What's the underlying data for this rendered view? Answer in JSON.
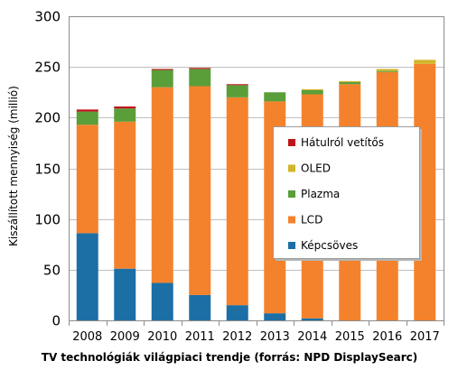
{
  "chart_data": {
    "type": "bar",
    "stacked": true,
    "categories": [
      "2008",
      "2009",
      "2010",
      "2011",
      "2012",
      "2013",
      "2014",
      "2015",
      "2016",
      "2017"
    ],
    "series": [
      {
        "name": "Képcsöves",
        "color": "#1c6fa5",
        "values": [
          86,
          51,
          37,
          25,
          15,
          7,
          2,
          0,
          0,
          0
        ]
      },
      {
        "name": "LCD",
        "color": "#f4822c",
        "values": [
          107,
          145,
          193,
          206,
          205,
          209,
          221,
          233,
          245,
          253
        ]
      },
      {
        "name": "Plazma",
        "color": "#5a9e3a",
        "values": [
          13,
          13,
          17,
          17,
          12,
          9,
          4,
          2,
          1,
          0
        ]
      },
      {
        "name": "OLED",
        "color": "#d2b52b",
        "values": [
          0,
          0,
          0,
          0,
          0,
          0,
          1,
          1,
          2,
          4
        ]
      },
      {
        "name": "Hátulról vetítős",
        "color": "#c0141b",
        "values": [
          2,
          2,
          1,
          1,
          1,
          0,
          0,
          0,
          0,
          0
        ]
      }
    ],
    "legend_order": [
      "Hátulról vetítős",
      "OLED",
      "Plazma",
      "LCD",
      "Képcsöves"
    ],
    "ylabel": "Kiszállított mennyiség (millió)",
    "xlabel": "",
    "ylim": [
      0,
      300
    ],
    "yticks": [
      0,
      50,
      100,
      150,
      200,
      250,
      300
    ],
    "grid": true,
    "legend_position": "right",
    "caption": "TV technológiák világpiaci trendje (forrás: NPD DisplaySearc)"
  }
}
